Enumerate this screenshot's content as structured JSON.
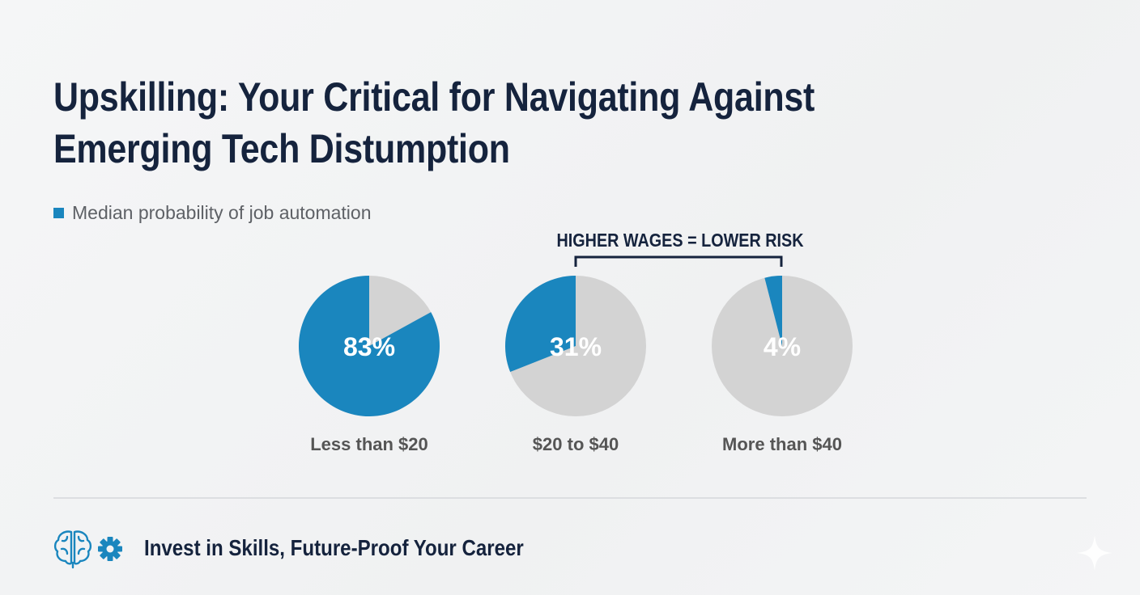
{
  "title": {
    "line1": "Upskilling: Your Critical for Navigating Against",
    "line2": "Emerging Tech Distumption"
  },
  "legend": {
    "label": "Median probability of job automation",
    "color": "#1a86be"
  },
  "callout": {
    "label": "HIGHER WAGES = LOWER RISK"
  },
  "footer": {
    "text": "Invest in Skills, Future-Proof Your Career",
    "icons": [
      "brain-icon",
      "gear-icon",
      "sparkle-icon"
    ]
  },
  "colors": {
    "accent": "#1a86be",
    "remainder": "#d3d3d3",
    "title": "#15233d",
    "label": "#555555"
  },
  "chart_data": {
    "type": "pie",
    "series_name": "Median probability of job automation",
    "categories": [
      "Less than $20",
      "$20 to $40",
      "More than $40"
    ],
    "values": [
      83,
      31,
      4
    ],
    "value_labels": [
      "83%",
      "31%",
      "4%"
    ],
    "unit": "%"
  }
}
